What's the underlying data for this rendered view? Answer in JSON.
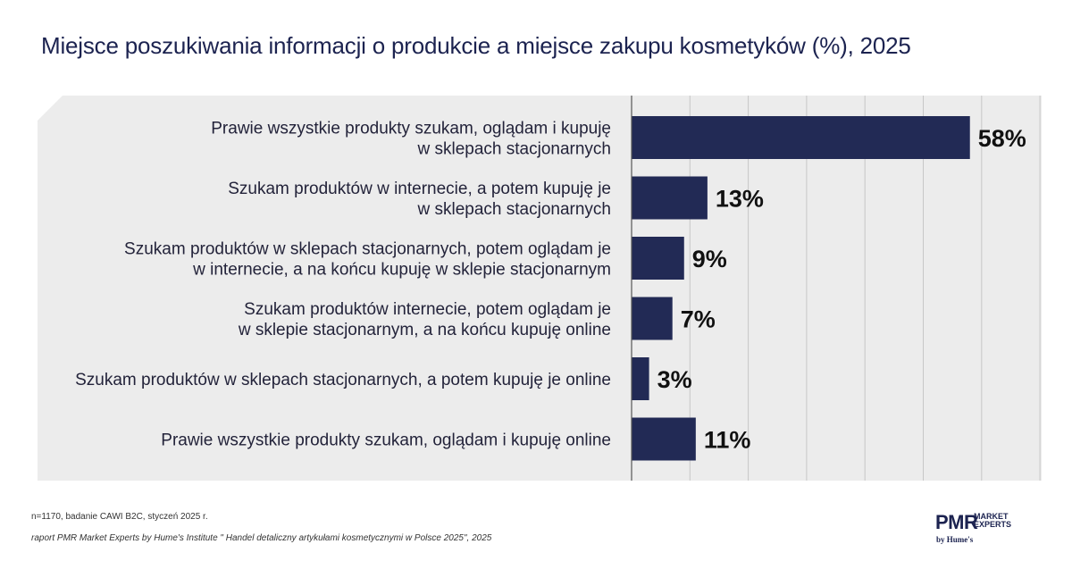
{
  "title": "Miejsce poszukiwania informacji o produkcie a miejsce zakupu kosmetyków (%), 2025",
  "footnote": "n=1170, badanie CAWI B2C, styczeń 2025 r.",
  "source": "raport PMR Market Experts by Hume's Institute \" Handel detaliczny artykułami kosmetycznymi w Polsce 2025\", 2025",
  "logo": {
    "main": "PMR",
    "side_line1": "MARKET",
    "side_line2": "EXPERTS",
    "by": "by Hume's"
  },
  "colors": {
    "bar": "#222a55",
    "panel": "#ececec",
    "grid": "#c7c7c7",
    "axis": "#555555"
  },
  "chart_data": {
    "type": "bar",
    "orientation": "horizontal",
    "title": "Miejsce poszukiwania informacji o produkcie a miejsce zakupu kosmetyków (%), 2025",
    "xlabel": "",
    "ylabel": "",
    "xlim": [
      0,
      70
    ],
    "grid": true,
    "legend": "none",
    "categories": [
      [
        "Prawie wszystkie produkty szukam, oglądam i kupuję",
        "w sklepach stacjonarnych"
      ],
      [
        "Szukam produktów w internecie, a potem kupuję je",
        "w sklepach stacjonarnych"
      ],
      [
        "Szukam produktów w sklepach stacjonarnych, potem oglądam je",
        "w internecie, a na końcu kupuję w sklepie stacjonarnym"
      ],
      [
        "Szukam produktów internecie, potem oglądam je",
        "w sklepie stacjonarnym, a na końcu kupuję online"
      ],
      [
        "Szukam produktów w sklepach stacjonarnych, a potem kupuję je online"
      ],
      [
        "Prawie wszystkie produkty szukam, oglądam i kupuję online"
      ]
    ],
    "values": [
      58,
      13,
      9,
      7,
      3,
      11
    ],
    "value_labels": [
      "58%",
      "13%",
      "9%",
      "7%",
      "3%",
      "11%"
    ]
  }
}
